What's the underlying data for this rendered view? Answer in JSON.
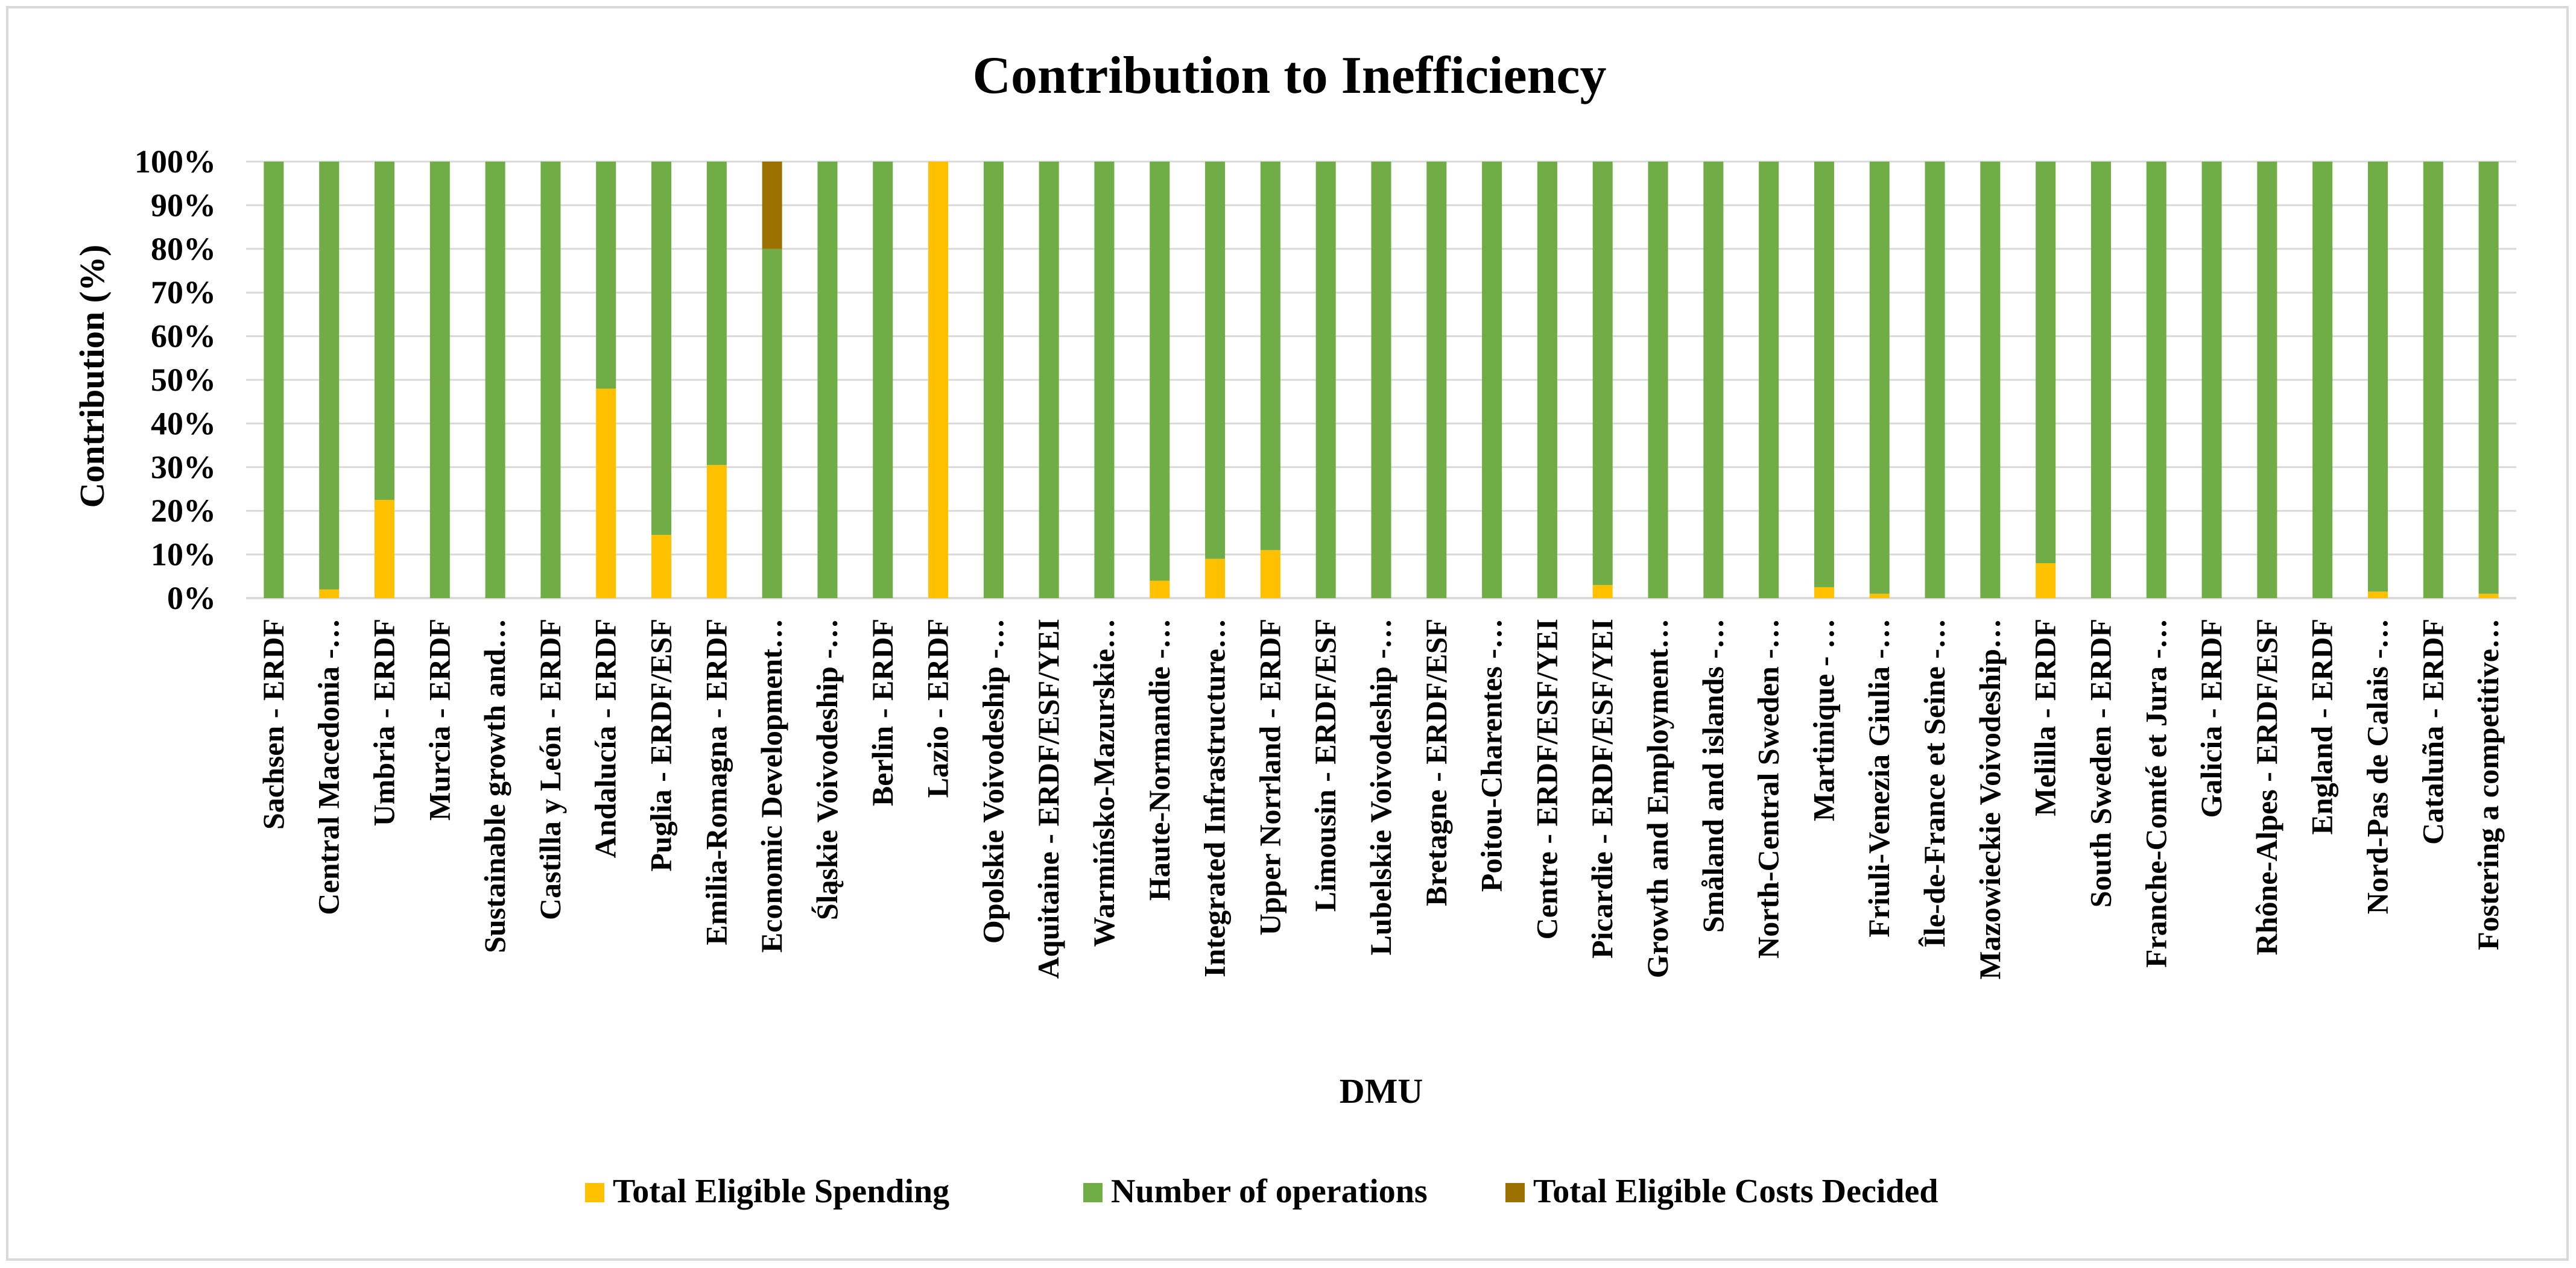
{
  "chart_data": {
    "type": "bar",
    "stacked": "percent",
    "title": "Contribution to Inefficiency",
    "xlabel": "DMU",
    "ylabel": "Contribution (%)",
    "ylim": [
      0,
      100
    ],
    "yticks": [
      "0%",
      "10%",
      "20%",
      "30%",
      "40%",
      "50%",
      "60%",
      "70%",
      "80%",
      "90%",
      "100%"
    ],
    "legend_position": "bottom",
    "grid": true,
    "categories": [
      "Sachsen - ERDF",
      "Central Macedonia -…",
      "Umbria - ERDF",
      "Murcia  - ERDF",
      "Sustainable growth and…",
      "Castilla y León  - ERDF",
      "Andalucía  - ERDF",
      "Puglia  - ERDF/ESF",
      "Emilia-Romagna - ERDF",
      "Economic Development…",
      "Śląskie Voivodeship -…",
      "Berlin - ERDF",
      "Lazio - ERDF",
      "Opolskie Voivodeship -…",
      "Aquitaine - ERDF/ESF/YEI",
      "Warmińsko-Mazurskie…",
      "Haute-Normandie -…",
      "Integrated Infrastructure…",
      "Upper Norrland - ERDF",
      "Limousin - ERDF/ESF",
      "Lubelskie Voivodeship -…",
      "Bretagne - ERDF/ESF",
      "Poitou-Charentes -…",
      "Centre - ERDF/ESF/YEI",
      "Picardie - ERDF/ESF/YEI",
      "Growth and Employment…",
      "Småland and islands -…",
      "North-Central Sweden -…",
      "Martinique - …",
      "Friuli-Venezia Giulia -…",
      "Île-de-France et Seine -…",
      "Mazowieckie Voivodeship…",
      "Melilla  - ERDF",
      "South Sweden - ERDF",
      "Franche-Comté et Jura -…",
      "Galicia  - ERDF",
      "Rhône-Alpes - ERDF/ESF",
      "England - ERDF",
      "Nord-Pas de Calais -…",
      "Cataluña  - ERDF",
      "Fostering a competitive…"
    ],
    "series": [
      {
        "name": "Total Eligible Spending",
        "color": "#ffc000",
        "values": [
          0,
          2,
          22.5,
          0,
          0,
          0,
          48,
          14.5,
          30.5,
          0,
          0,
          0,
          100,
          0,
          0,
          0,
          4,
          9,
          11,
          0,
          0,
          0,
          0,
          0,
          3,
          0,
          0,
          0,
          2.5,
          1,
          0,
          0,
          8,
          0,
          0,
          0,
          0,
          0,
          1.5,
          0,
          1
        ]
      },
      {
        "name": "Number of operations",
        "color": "#70ad47",
        "values": [
          100,
          98,
          77.5,
          100,
          100,
          100,
          52,
          85.5,
          69.5,
          80,
          100,
          100,
          0,
          100,
          100,
          100,
          96,
          91,
          89,
          100,
          100,
          100,
          100,
          100,
          97,
          100,
          100,
          100,
          97.5,
          99,
          100,
          100,
          92,
          100,
          100,
          100,
          100,
          100,
          98.5,
          100,
          99
        ]
      },
      {
        "name": "Total Eligible Costs Decided",
        "color": "#9c7100",
        "values": [
          0,
          0,
          0,
          0,
          0,
          0,
          0,
          0,
          0,
          20,
          0,
          0,
          0,
          0,
          0,
          0,
          0,
          0,
          0,
          0,
          0,
          0,
          0,
          0,
          0,
          0,
          0,
          0,
          0,
          0,
          0,
          0,
          0,
          0,
          0,
          0,
          0,
          0,
          0,
          0,
          0
        ]
      }
    ]
  }
}
